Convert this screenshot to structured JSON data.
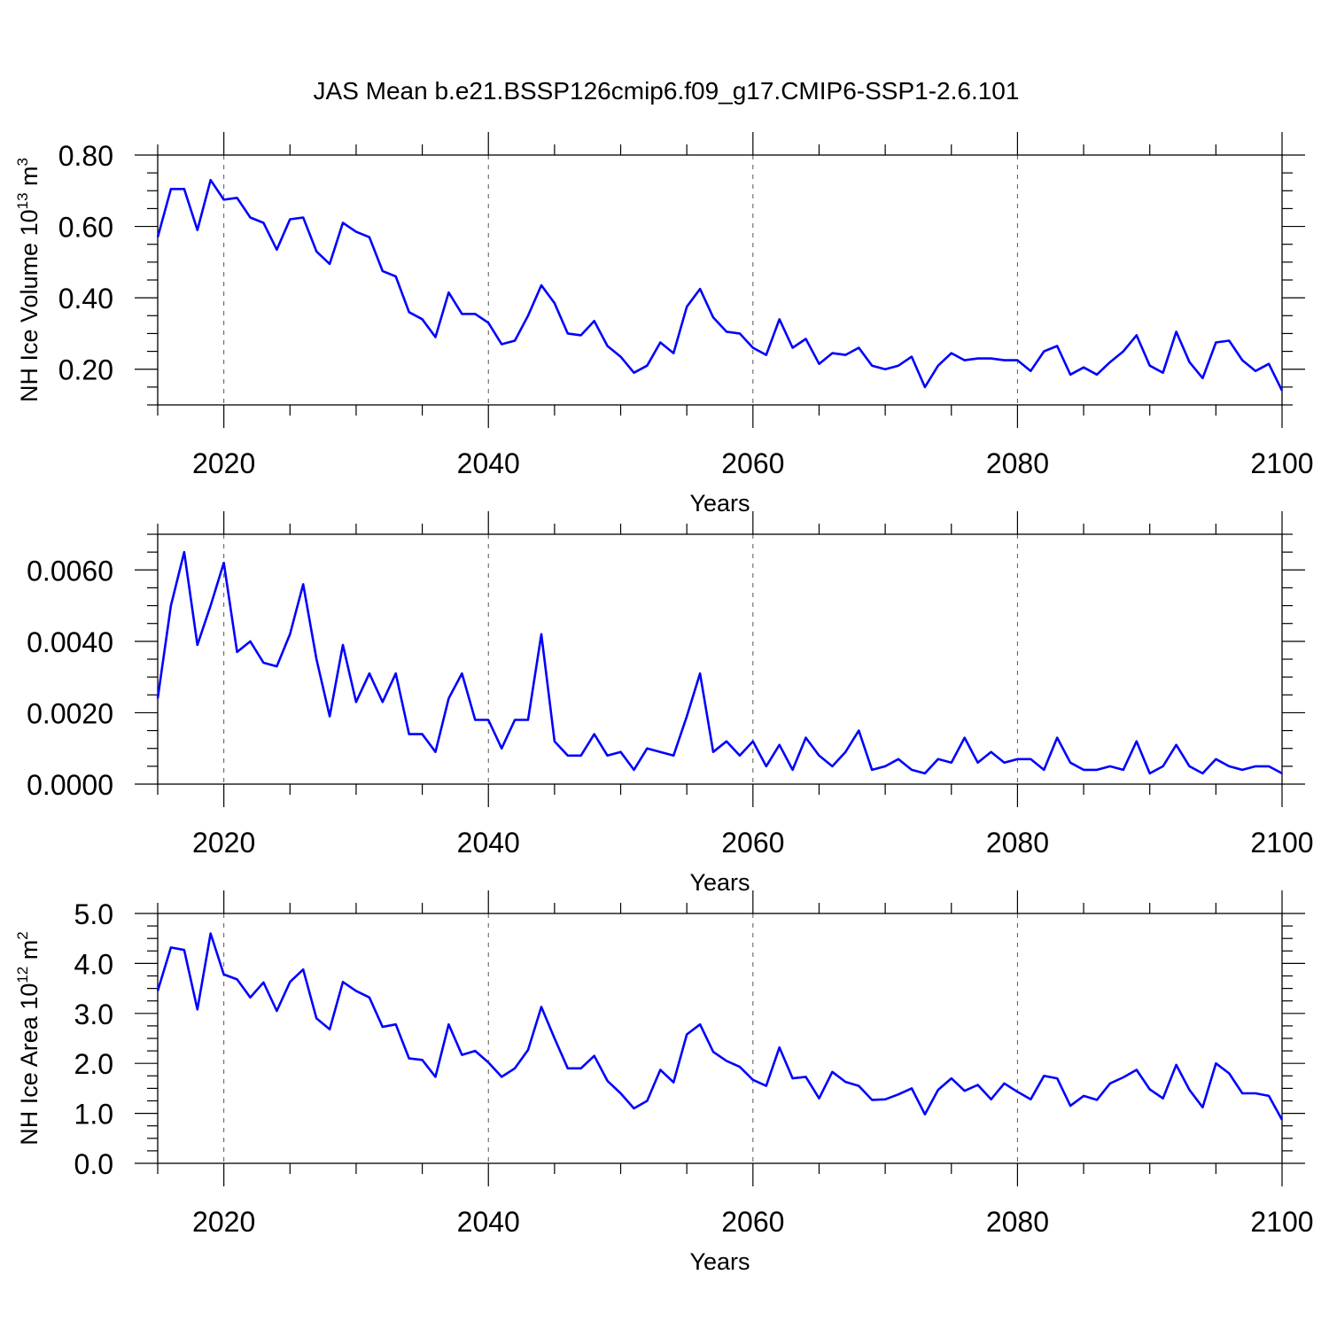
{
  "title": "JAS Mean b.e21.BSSP126cmip6.f09_g17.CMIP6-SSP1-2.6.101",
  "series_color": "#0000ff",
  "chart_data": [
    {
      "type": "line",
      "xlabel": "Years",
      "ylabel": "NH Ice Volume 10",
      "ylabel_sup": "13",
      "ylabel_unit": " m",
      "ylabel_unit_sup": "3",
      "xlim": [
        2015,
        2100
      ],
      "ylim": [
        0.1,
        0.8
      ],
      "xticks": [
        2020,
        2040,
        2060,
        2080,
        2100
      ],
      "yticks": [
        0.2,
        0.4,
        0.6,
        0.8
      ],
      "ytick_labels": [
        "0.20",
        "0.40",
        "0.60",
        "0.80"
      ],
      "y_minor_step": 0.05,
      "x": [
        2015,
        2016,
        2017,
        2018,
        2019,
        2020,
        2021,
        2022,
        2023,
        2024,
        2025,
        2026,
        2027,
        2028,
        2029,
        2030,
        2031,
        2032,
        2033,
        2034,
        2035,
        2036,
        2037,
        2038,
        2039,
        2040,
        2041,
        2042,
        2043,
        2044,
        2045,
        2046,
        2047,
        2048,
        2049,
        2050,
        2051,
        2052,
        2053,
        2054,
        2055,
        2056,
        2057,
        2058,
        2059,
        2060,
        2061,
        2062,
        2063,
        2064,
        2065,
        2066,
        2067,
        2068,
        2069,
        2070,
        2071,
        2072,
        2073,
        2074,
        2075,
        2076,
        2077,
        2078,
        2079,
        2080,
        2081,
        2082,
        2083,
        2084,
        2085,
        2086,
        2087,
        2088,
        2089,
        2090,
        2091,
        2092,
        2093,
        2094,
        2095,
        2096,
        2097,
        2098,
        2099,
        2100
      ],
      "values": [
        0.57,
        0.705,
        0.705,
        0.59,
        0.73,
        0.675,
        0.68,
        0.625,
        0.61,
        0.535,
        0.62,
        0.625,
        0.53,
        0.495,
        0.61,
        0.585,
        0.57,
        0.475,
        0.46,
        0.36,
        0.34,
        0.29,
        0.415,
        0.355,
        0.355,
        0.33,
        0.27,
        0.28,
        0.35,
        0.435,
        0.385,
        0.3,
        0.295,
        0.335,
        0.265,
        0.235,
        0.19,
        0.21,
        0.275,
        0.245,
        0.375,
        0.425,
        0.345,
        0.305,
        0.3,
        0.26,
        0.24,
        0.34,
        0.26,
        0.285,
        0.215,
        0.245,
        0.24,
        0.26,
        0.21,
        0.2,
        0.21,
        0.235,
        0.15,
        0.21,
        0.245,
        0.225,
        0.23,
        0.23,
        0.225,
        0.225,
        0.195,
        0.25,
        0.265,
        0.185,
        0.205,
        0.185,
        0.22,
        0.25,
        0.295,
        0.21,
        0.19,
        0.305,
        0.22,
        0.175,
        0.275,
        0.28,
        0.225,
        0.195,
        0.215,
        0.14
      ]
    },
    {
      "type": "line",
      "xlabel": "Years",
      "ylabel": "",
      "xlim": [
        2015,
        2100
      ],
      "ylim": [
        0.0,
        0.007
      ],
      "xticks": [
        2020,
        2040,
        2060,
        2080,
        2100
      ],
      "yticks": [
        0.0,
        0.002,
        0.004,
        0.006
      ],
      "ytick_labels": [
        "0.0000",
        "0.0020",
        "0.0040",
        "0.0060"
      ],
      "y_minor_step": 0.0005,
      "x": [
        2015,
        2016,
        2017,
        2018,
        2019,
        2020,
        2021,
        2022,
        2023,
        2024,
        2025,
        2026,
        2027,
        2028,
        2029,
        2030,
        2031,
        2032,
        2033,
        2034,
        2035,
        2036,
        2037,
        2038,
        2039,
        2040,
        2041,
        2042,
        2043,
        2044,
        2045,
        2046,
        2047,
        2048,
        2049,
        2050,
        2051,
        2052,
        2053,
        2054,
        2055,
        2056,
        2057,
        2058,
        2059,
        2060,
        2061,
        2062,
        2063,
        2064,
        2065,
        2066,
        2067,
        2068,
        2069,
        2070,
        2071,
        2072,
        2073,
        2074,
        2075,
        2076,
        2077,
        2078,
        2079,
        2080,
        2081,
        2082,
        2083,
        2084,
        2085,
        2086,
        2087,
        2088,
        2089,
        2090,
        2091,
        2092,
        2093,
        2094,
        2095,
        2096,
        2097,
        2098,
        2099,
        2100
      ],
      "values": [
        0.0024,
        0.005,
        0.0065,
        0.0039,
        0.005,
        0.0062,
        0.0037,
        0.004,
        0.0034,
        0.0033,
        0.0042,
        0.0056,
        0.0035,
        0.0019,
        0.0039,
        0.0023,
        0.0031,
        0.0023,
        0.0031,
        0.0014,
        0.0014,
        0.0009,
        0.0024,
        0.0031,
        0.0018,
        0.0018,
        0.001,
        0.0018,
        0.0018,
        0.0042,
        0.0012,
        0.0008,
        0.0008,
        0.0014,
        0.0008,
        0.0009,
        0.0004,
        0.001,
        0.0009,
        0.0008,
        0.0019,
        0.0031,
        0.0009,
        0.0012,
        0.0008,
        0.0012,
        0.0005,
        0.0011,
        0.0004,
        0.0013,
        0.0008,
        0.0005,
        0.0009,
        0.0015,
        0.0004,
        0.0005,
        0.0007,
        0.0004,
        0.0003,
        0.0007,
        0.0006,
        0.0013,
        0.0006,
        0.0009,
        0.0006,
        0.0007,
        0.0007,
        0.0004,
        0.0013,
        0.0006,
        0.0004,
        0.0004,
        0.0005,
        0.0004,
        0.0012,
        0.0003,
        0.0005,
        0.0011,
        0.0005,
        0.0003,
        0.0007,
        0.0005,
        0.0004,
        0.0005,
        0.0005,
        0.0003
      ]
    },
    {
      "type": "line",
      "xlabel": "Years",
      "ylabel": "NH Ice Area 10",
      "ylabel_sup": "12",
      "ylabel_unit": " m",
      "ylabel_unit_sup": "2",
      "xlim": [
        2015,
        2100
      ],
      "ylim": [
        0.0,
        5.0
      ],
      "xticks": [
        2020,
        2040,
        2060,
        2080,
        2100
      ],
      "yticks": [
        0.0,
        1.0,
        2.0,
        3.0,
        4.0,
        5.0
      ],
      "ytick_labels": [
        "0.0",
        "1.0",
        "2.0",
        "3.0",
        "4.0",
        "5.0"
      ],
      "y_minor_step": 0.25,
      "x": [
        2015,
        2016,
        2017,
        2018,
        2019,
        2020,
        2021,
        2022,
        2023,
        2024,
        2025,
        2026,
        2027,
        2028,
        2029,
        2030,
        2031,
        2032,
        2033,
        2034,
        2035,
        2036,
        2037,
        2038,
        2039,
        2040,
        2041,
        2042,
        2043,
        2044,
        2045,
        2046,
        2047,
        2048,
        2049,
        2050,
        2051,
        2052,
        2053,
        2054,
        2055,
        2056,
        2057,
        2058,
        2059,
        2060,
        2061,
        2062,
        2063,
        2064,
        2065,
        2066,
        2067,
        2068,
        2069,
        2070,
        2071,
        2072,
        2073,
        2074,
        2075,
        2076,
        2077,
        2078,
        2079,
        2080,
        2081,
        2082,
        2083,
        2084,
        2085,
        2086,
        2087,
        2088,
        2089,
        2090,
        2091,
        2092,
        2093,
        2094,
        2095,
        2096,
        2097,
        2098,
        2099,
        2100
      ],
      "values": [
        3.45,
        4.32,
        4.27,
        3.08,
        4.6,
        3.78,
        3.68,
        3.32,
        3.62,
        3.05,
        3.63,
        3.88,
        2.9,
        2.68,
        3.63,
        3.45,
        3.32,
        2.73,
        2.78,
        2.1,
        2.07,
        1.73,
        2.78,
        2.17,
        2.25,
        2.02,
        1.73,
        1.9,
        2.27,
        3.13,
        2.5,
        1.9,
        1.9,
        2.15,
        1.65,
        1.4,
        1.1,
        1.25,
        1.87,
        1.62,
        2.58,
        2.78,
        2.23,
        2.05,
        1.93,
        1.67,
        1.55,
        2.32,
        1.7,
        1.73,
        1.3,
        1.83,
        1.63,
        1.55,
        1.27,
        1.28,
        1.38,
        1.5,
        0.98,
        1.47,
        1.7,
        1.45,
        1.57,
        1.28,
        1.6,
        1.43,
        1.28,
        1.75,
        1.7,
        1.15,
        1.35,
        1.27,
        1.6,
        1.72,
        1.87,
        1.48,
        1.3,
        1.97,
        1.47,
        1.12,
        2.0,
        1.8,
        1.4,
        1.4,
        1.35,
        0.87
      ]
    }
  ]
}
